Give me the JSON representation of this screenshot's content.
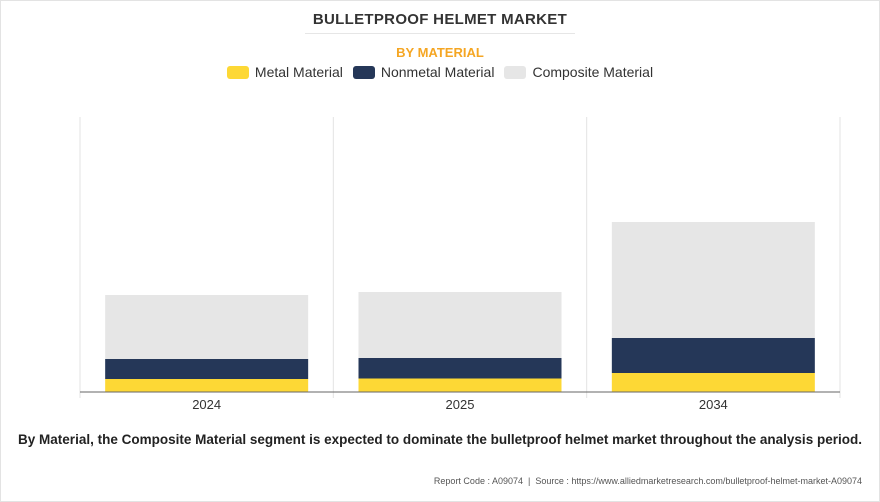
{
  "title": "BULLETPROOF HELMET MARKET",
  "subtitle": "BY MATERIAL",
  "colors": {
    "metal": "#fdd835",
    "nonmetal": "#253758",
    "composite": "#e6e6e6",
    "subtitle": "#f5a623"
  },
  "chart_data": {
    "type": "bar",
    "stacked": true,
    "categories": [
      "2024",
      "2025",
      "2034"
    ],
    "series": [
      {
        "name": "Metal Material",
        "color": "#fdd835",
        "values": [
          0.13,
          0.135,
          0.19
        ]
      },
      {
        "name": "Nonmetal Material",
        "color": "#253758",
        "values": [
          0.33,
          0.34,
          0.54
        ]
      },
      {
        "name": "Composite Material",
        "color": "#e6e6e6",
        "values": [
          0.97,
          1.0,
          1.7
        ]
      }
    ],
    "ylim": [
      0,
      2.75
    ],
    "grid": false,
    "legend": "top-center",
    "xlabel": "",
    "ylabel": ""
  },
  "caption": "By Material, the Composite Material segment is expected to dominate the bulletproof helmet market throughout the analysis period.",
  "footer": {
    "report_code": "Report Code : A09074",
    "source": "Source : https://www.alliedmarketresearch.com/bulletproof-helmet-market-A09074"
  }
}
